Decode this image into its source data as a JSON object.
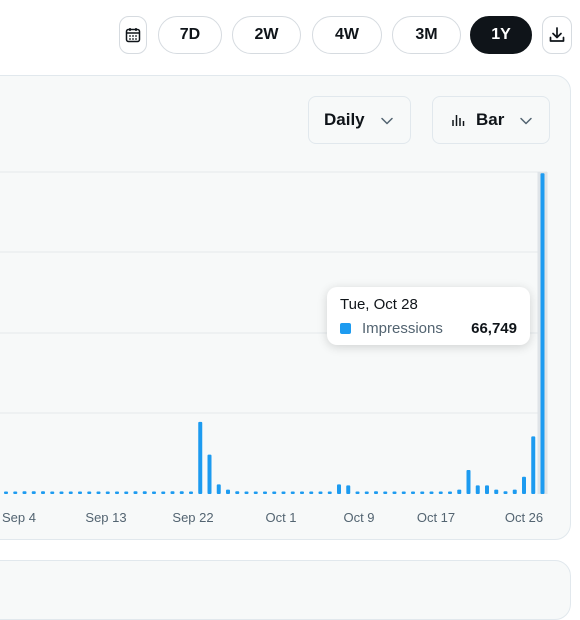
{
  "toolbar": {
    "calendar_icon": "calendar-icon",
    "ranges": [
      "7D",
      "2W",
      "4W",
      "3M",
      "1Y"
    ],
    "active_range": "1Y",
    "download_icon": "download-icon"
  },
  "controls": {
    "interval": "Daily",
    "chart_type": "Bar",
    "chart_type_icon": "bar-chart-icon"
  },
  "tooltip": {
    "date": "Tue, Oct 28",
    "series": "Impressions",
    "value": "66,749"
  },
  "colors": {
    "accent": "#1d9bf0",
    "active_button": "#0f1419"
  },
  "chart_data": {
    "type": "bar",
    "series": [
      {
        "name": "Impressions",
        "values": [
          450,
          450,
          560,
          560,
          560,
          450,
          450,
          450,
          400,
          400,
          450,
          450,
          450,
          450,
          560,
          560,
          450,
          450,
          560,
          560,
          450,
          15000,
          8200,
          2000,
          900,
          560,
          450,
          400,
          350,
          350,
          350,
          350,
          350,
          350,
          350,
          350,
          2000,
          1800,
          400,
          400,
          560,
          450,
          450,
          400,
          350,
          350,
          350,
          350,
          450,
          900,
          5000,
          1800,
          1800,
          900,
          560,
          900,
          3600,
          12000,
          66749
        ]
      }
    ],
    "xticks": [
      "Sep 4",
      "Sep 13",
      "Sep 22",
      "Oct 1",
      "Oct 9",
      "Oct 17",
      "Oct 26"
    ],
    "ylim": [
      0,
      67000
    ],
    "grid": true,
    "highlighted": "Tue, Oct 28"
  }
}
